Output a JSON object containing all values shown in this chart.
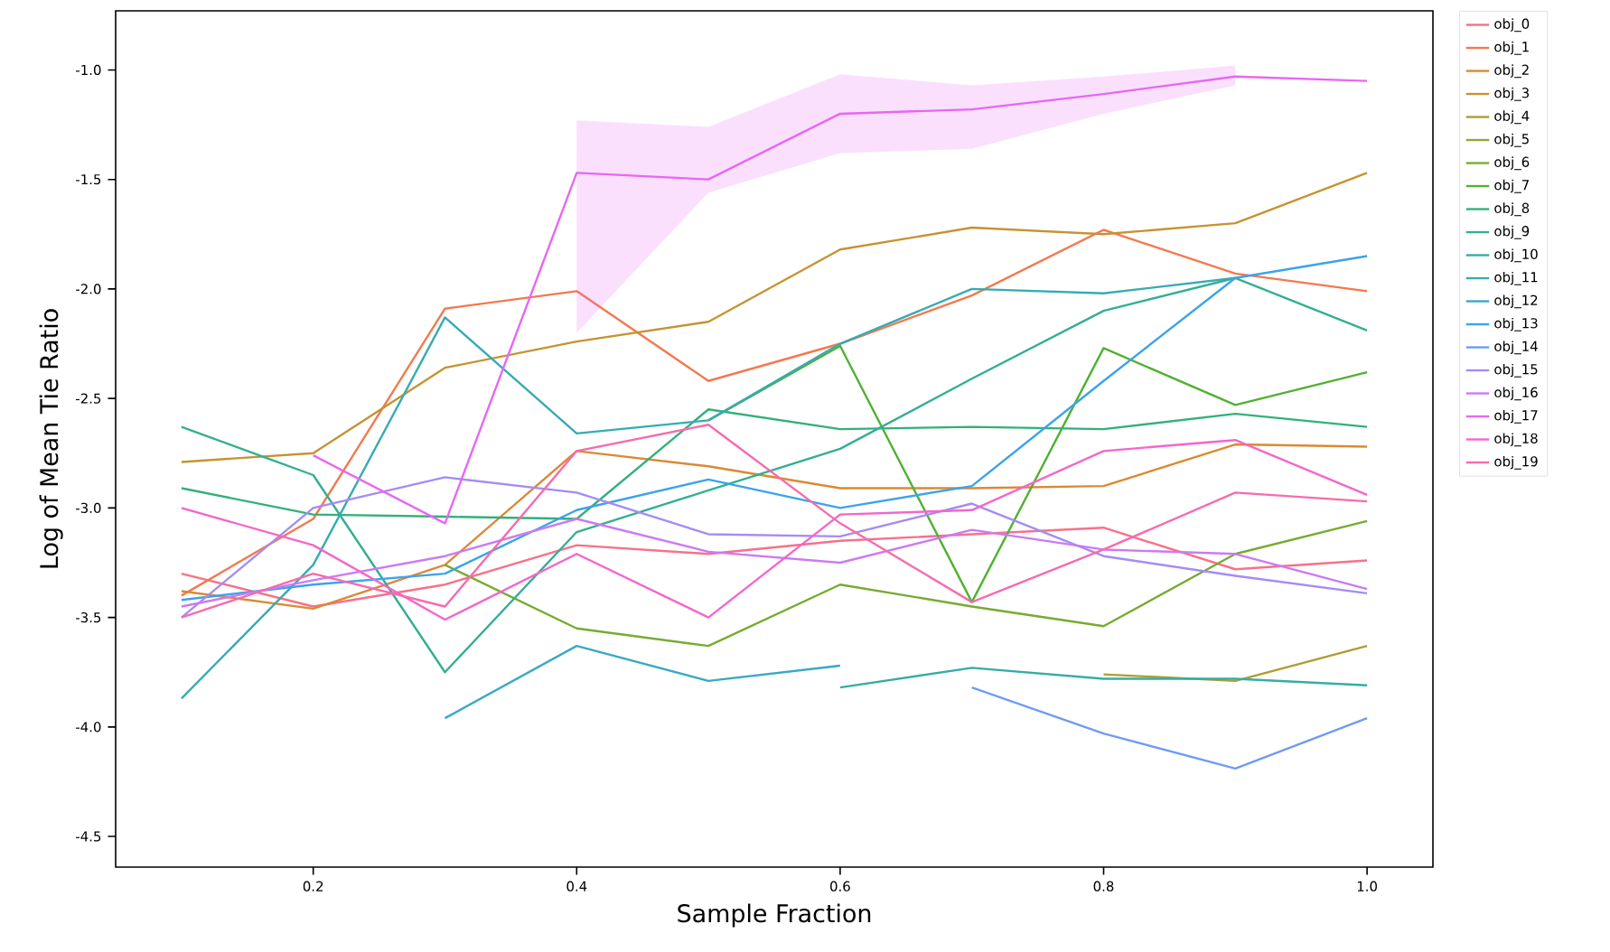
{
  "chart_data": {
    "type": "line",
    "xlabel": "Sample Fraction",
    "ylabel": "Log of Mean Tie Ratio",
    "x": [
      0.1,
      0.2,
      0.3,
      0.4,
      0.5,
      0.6,
      0.7,
      0.8,
      0.9,
      1.0
    ],
    "xlim": [
      0.05,
      1.05
    ],
    "xticks": [
      0.2,
      0.4,
      0.6,
      0.8,
      {
        "value": 1.0,
        "label": "1.0"
      }
    ],
    "ylim": [
      -4.64,
      -0.73
    ],
    "yticks": [
      -4.5,
      {
        "value": -4.0,
        "label": "-4.0"
      },
      -3.5,
      {
        "value": -3.0,
        "label": "-3.0"
      },
      -2.5,
      {
        "value": -2.0,
        "label": "-2.0"
      },
      -1.5,
      {
        "value": -1.0,
        "label": "-1.0"
      }
    ],
    "legend": "top right",
    "grid": false,
    "series": [
      {
        "name": "obj_0",
        "color": "#f77189",
        "values": [
          -3.3,
          -3.45,
          -3.35,
          -3.17,
          -3.21,
          -3.15,
          -3.12,
          -3.09,
          -3.28,
          -3.24
        ]
      },
      {
        "name": "obj_1",
        "color": "#f3794f",
        "values": [
          -3.4,
          -3.05,
          -2.09,
          -2.01,
          -2.42,
          -2.25,
          -2.03,
          -1.73,
          -1.93,
          -2.01
        ]
      },
      {
        "name": "obj_2",
        "color": "#dc8932",
        "values": [
          -3.38,
          -3.46,
          -3.26,
          -2.74,
          -2.81,
          -2.91,
          -2.91,
          -2.9,
          -2.71,
          -2.72
        ]
      },
      {
        "name": "obj_3",
        "color": "#c69331",
        "values": [
          -2.79,
          -2.75,
          -2.36,
          -2.24,
          -2.15,
          -1.82,
          -1.72,
          -1.75,
          -1.7,
          -1.47
        ]
      },
      {
        "name": "obj_4",
        "color": "#ae9d31",
        "values": [
          null,
          null,
          null,
          null,
          null,
          null,
          null,
          -3.76,
          -3.79,
          -3.63
        ]
      },
      {
        "name": "obj_5",
        "color": "#97a431",
        "values": [
          null,
          null,
          null,
          null,
          null,
          null,
          null,
          null,
          null,
          null
        ]
      },
      {
        "name": "obj_6",
        "color": "#77ab31",
        "values": [
          null,
          null,
          -3.26,
          -3.55,
          -3.63,
          -3.35,
          -3.45,
          -3.54,
          -3.21,
          -3.06
        ]
      },
      {
        "name": "obj_7",
        "color": "#50b131",
        "values": [
          null,
          null,
          null,
          null,
          -2.6,
          -2.26,
          -3.43,
          -2.27,
          -2.53,
          -2.38
        ]
      },
      {
        "name": "obj_8",
        "color": "#33b07a",
        "values": [
          -2.91,
          -3.03,
          -3.04,
          -3.05,
          -2.55,
          -2.64,
          -2.63,
          -2.64,
          -2.57,
          -2.63
        ]
      },
      {
        "name": "obj_9",
        "color": "#35ae93",
        "values": [
          -2.63,
          -2.85,
          -3.75,
          -3.11,
          -2.92,
          -2.73,
          -2.41,
          -2.1,
          -1.95,
          -2.19
        ]
      },
      {
        "name": "obj_10",
        "color": "#36ada4",
        "values": [
          null,
          null,
          null,
          null,
          null,
          -3.82,
          -3.73,
          -3.78,
          -3.78,
          -3.81
        ]
      },
      {
        "name": "obj_11",
        "color": "#37abb4",
        "values": [
          -3.87,
          -3.26,
          -2.13,
          -2.66,
          -2.6,
          -2.25,
          -2.0,
          -2.02,
          -1.95,
          null
        ]
      },
      {
        "name": "obj_12",
        "color": "#38a9c5",
        "values": [
          null,
          null,
          -3.96,
          -3.63,
          -3.79,
          -3.72,
          null,
          null,
          null,
          null
        ]
      },
      {
        "name": "obj_13",
        "color": "#3ba3ec",
        "values": [
          -3.42,
          -3.35,
          -3.3,
          -3.01,
          -2.87,
          -3.0,
          -2.9,
          -2.42,
          -1.95,
          -1.85
        ]
      },
      {
        "name": "obj_14",
        "color": "#6e9bf4",
        "values": [
          null,
          null,
          null,
          null,
          null,
          null,
          -3.82,
          -4.03,
          -4.19,
          -3.96
        ]
      },
      {
        "name": "obj_15",
        "color": "#a48cf4",
        "values": [
          -3.5,
          -3.0,
          -2.86,
          -2.93,
          -3.12,
          -3.13,
          -2.98,
          -3.22,
          -3.31,
          -3.39
        ]
      },
      {
        "name": "obj_16",
        "color": "#cc7af4",
        "values": [
          -3.45,
          -3.33,
          -3.22,
          -3.05,
          -3.2,
          -3.25,
          -3.1,
          -3.19,
          -3.21,
          -3.37
        ]
      },
      {
        "name": "obj_17",
        "color": "#e866f4",
        "values": [
          null,
          -2.76,
          -3.07,
          -1.47,
          -1.5,
          -1.2,
          -1.18,
          -1.11,
          -1.03,
          -1.05
        ],
        "lower": [
          null,
          null,
          null,
          -2.2,
          -1.56,
          -1.38,
          -1.36,
          -1.2,
          -1.07,
          null
        ],
        "upper": [
          null,
          null,
          null,
          -1.23,
          -1.26,
          -1.02,
          -1.07,
          -1.03,
          -0.98,
          null
        ]
      },
      {
        "name": "obj_18",
        "color": "#f565cc",
        "values": [
          -3.0,
          -3.17,
          -3.51,
          -3.21,
          -3.5,
          -3.03,
          -3.01,
          -2.74,
          -2.69,
          -2.94
        ]
      },
      {
        "name": "obj_19",
        "color": "#f66bad",
        "values": [
          -3.5,
          -3.3,
          -3.45,
          -2.74,
          -2.62,
          -3.07,
          -3.43,
          -3.19,
          -2.93,
          -2.97
        ]
      }
    ]
  }
}
